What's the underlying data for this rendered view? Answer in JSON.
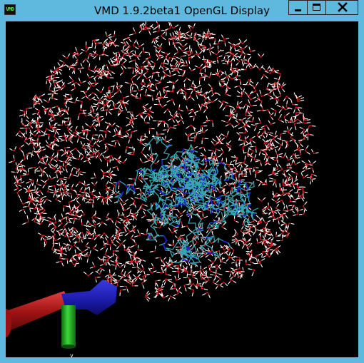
{
  "window": {
    "title": "VMD 1.9.2beta1 OpenGL Display",
    "app_icon_text": "VMD",
    "icon_names": [
      "vmd-app-icon",
      "minimize-icon",
      "maximize-icon",
      "close-icon"
    ]
  },
  "viewport": {
    "background": "#000000",
    "water_oxygen_color": "#e0201f",
    "water_hydrogen_color": "#ffffff",
    "protein_carbon_color": "#3aa8b4",
    "protein_nitrogen_color": "#2020d0",
    "axes": {
      "x_axis_color": "#b01818",
      "y_axis_color": "#20a020",
      "z_axis_color": "#1c1cb8",
      "label": "y"
    }
  }
}
